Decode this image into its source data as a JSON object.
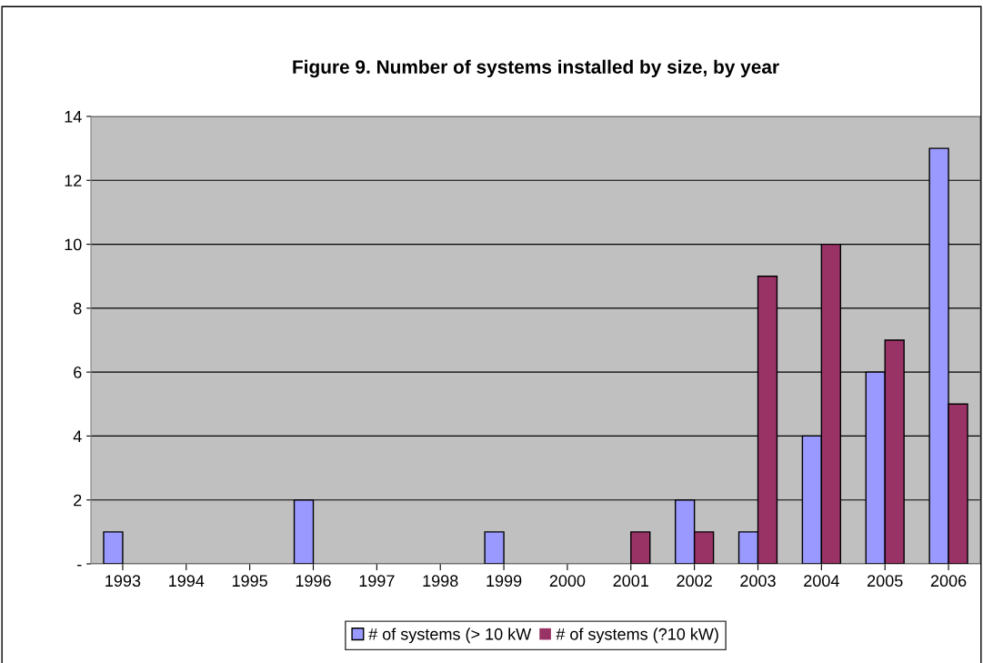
{
  "chart_data": {
    "type": "bar",
    "title": "Figure 9. Number of systems installed by size, by year",
    "categories": [
      "1993",
      "1994",
      "1995",
      "1996",
      "1997",
      "1998",
      "1999",
      "2000",
      "2001",
      "2002",
      "2003",
      "2004",
      "2005",
      "2006"
    ],
    "series": [
      {
        "name": "# of systems (> 10 kW",
        "color": "#9999ff",
        "values": [
          1,
          0,
          0,
          2,
          0,
          0,
          1,
          0,
          0,
          2,
          1,
          4,
          6,
          13
        ]
      },
      {
        "name": "# of systems (?10 kW)",
        "color": "#993366",
        "values": [
          0,
          0,
          0,
          0,
          0,
          0,
          0,
          0,
          1,
          1,
          9,
          10,
          7,
          5
        ]
      }
    ],
    "ylim": [
      0,
      14
    ],
    "yticks": [
      {
        "value": 0,
        "label": "-"
      },
      2,
      4,
      6,
      8,
      10,
      12,
      14
    ],
    "grid": "y",
    "legend": "bottom"
  }
}
